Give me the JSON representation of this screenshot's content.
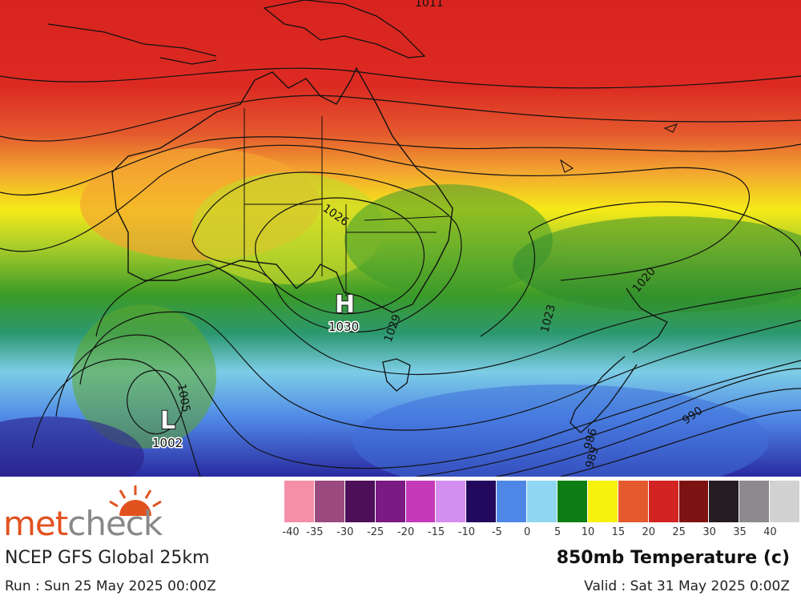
{
  "map": {
    "pressure_centers": [
      {
        "type": "H",
        "value": "1030"
      },
      {
        "type": "L",
        "value": "1002"
      }
    ],
    "isobar_labels": [
      "1011",
      "1026",
      "1029",
      "1023",
      "1020",
      "1005",
      "990",
      "986",
      "989"
    ]
  },
  "footer": {
    "logo_met": "met",
    "logo_check": "check",
    "model": "NCEP GFS Global 25km",
    "run": "Run : Sun 25 May 2025 00:00Z",
    "parameter": "850mb Temperature (c)",
    "valid": "Valid : Sat 31 May 2025 0:00Z"
  },
  "scale": {
    "colors": [
      "#f58fa8",
      "#9a4a7e",
      "#4e0f5a",
      "#7b1a82",
      "#c43ab8",
      "#d48ef0",
      "#22095e",
      "#4f87e6",
      "#8fd6f2",
      "#0e7e14",
      "#f6f20e",
      "#e4592e",
      "#d22422",
      "#7c1313",
      "#241d24",
      "#8c8a8c",
      "#d2d2d2"
    ],
    "labels": [
      "-40",
      "-35",
      "-30",
      "-25",
      "-20",
      "-15",
      "-10",
      "-5",
      "0",
      "5",
      "10",
      "15",
      "20",
      "25",
      "30",
      "35",
      "40"
    ]
  }
}
